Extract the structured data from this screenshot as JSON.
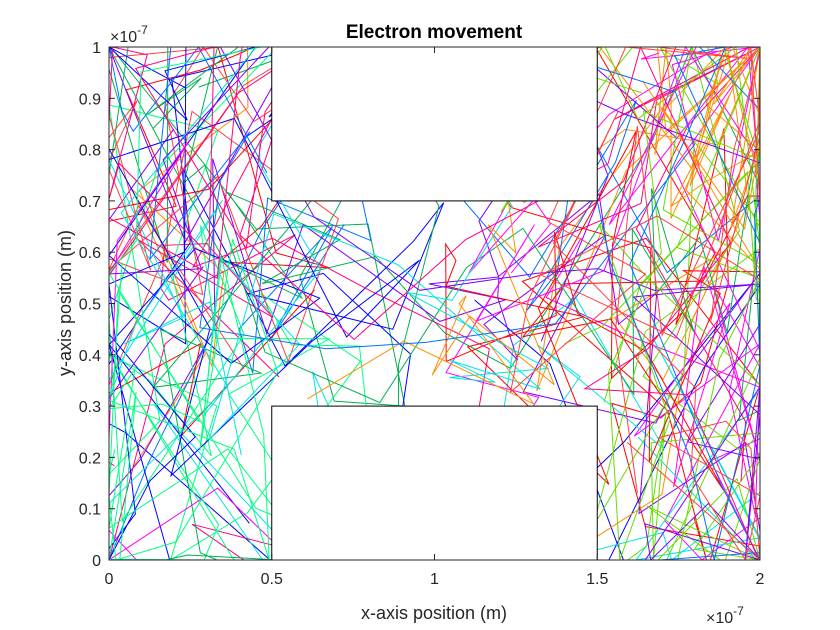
{
  "chart_data": {
    "type": "line",
    "title": "Electron movement",
    "xlabel": "x-axis position (m)",
    "ylabel": "y-axis position (m)",
    "xlim": [
      0,
      2e-07
    ],
    "ylim": [
      0,
      1e-07
    ],
    "x_ticks": [
      0,
      0.5,
      1,
      1.5,
      2
    ],
    "x_tick_labels": [
      "0",
      "0.5",
      "1",
      "1.5",
      "2"
    ],
    "y_ticks": [
      0,
      0.1,
      0.2,
      0.3,
      0.4,
      0.5,
      0.6,
      0.7,
      0.8,
      0.9,
      1
    ],
    "y_tick_labels": [
      "0",
      "0.1",
      "0.2",
      "0.3",
      "0.4",
      "0.5",
      "0.6",
      "0.7",
      "0.8",
      "0.9",
      "1"
    ],
    "x_exponent": {
      "base": "×10",
      "power": "-7"
    },
    "y_exponent": {
      "base": "×10",
      "power": "-7"
    },
    "grid": false,
    "boxes": [
      {
        "x": [
          5e-08,
          1.5e-07
        ],
        "y": [
          7e-08,
          1e-07
        ]
      },
      {
        "x": [
          5e-08,
          1.5e-07
        ],
        "y": [
          0,
          3e-08
        ]
      }
    ],
    "colors": [
      "#ff0000",
      "#00b050",
      "#0000ff",
      "#ff00ff",
      "#00e5e5",
      "#ff8c00",
      "#8000ff",
      "#66dd00",
      "#0070ff",
      "#ff0080",
      "#00ff80",
      "#ff4040"
    ],
    "series_count": 24,
    "points_per_series": 36,
    "random_seed": 7
  }
}
